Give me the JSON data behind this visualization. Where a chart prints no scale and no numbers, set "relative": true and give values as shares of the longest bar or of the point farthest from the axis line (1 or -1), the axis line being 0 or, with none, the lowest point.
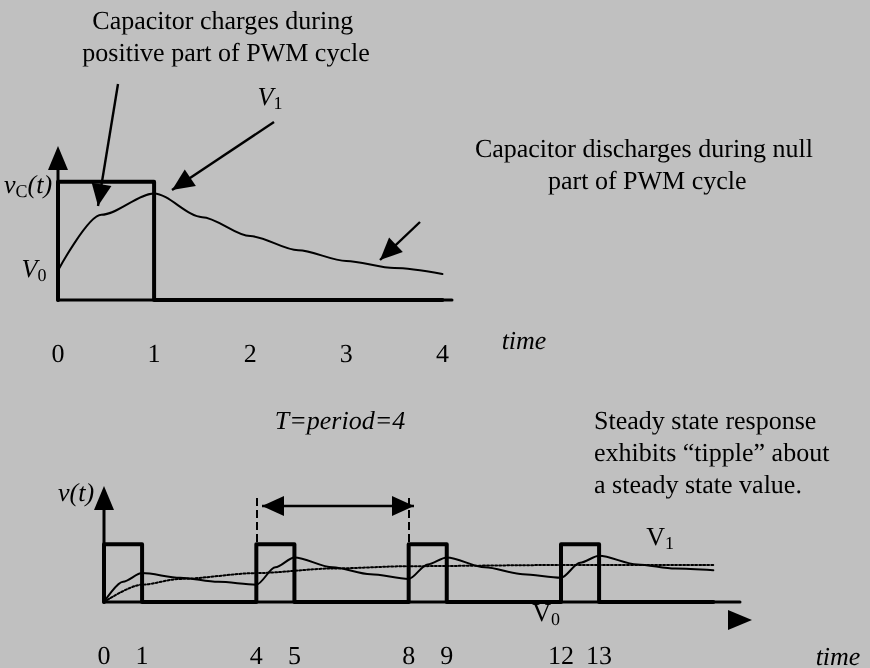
{
  "chart_data": [
    {
      "type": "line",
      "relative": true,
      "marker": "none",
      "xlim": [
        0,
        4.1
      ],
      "xticks": [
        0,
        1,
        2,
        3,
        4
      ],
      "xlabel": "time",
      "ylabel": "v$_{C}$(t)",
      "annotations": [
        "Capacitor charges during positive part of PWM cycle",
        "V$_{1}$",
        "Capacitor discharges during null part of PWM cycle",
        "V$_{0}$"
      ],
      "series": [
        {
          "type": "step",
          "color": "#000000",
          "x": [
            0,
            0,
            1,
            4
          ],
          "values": [
            0,
            1,
            0,
            0
          ]
        },
        {
          "type": "line",
          "color": "#000000",
          "x": [
            0,
            0.45,
            1,
            1.5,
            2,
            2.5,
            3,
            3.5,
            4
          ],
          "values": [
            0.25,
            0.72,
            0.9,
            0.7,
            0.54,
            0.42,
            0.33,
            0.27,
            0.22
          ]
        }
      ]
    },
    {
      "type": "line",
      "relative": true,
      "marker": "none",
      "xlim": [
        0,
        16.7
      ],
      "xticks": [
        0,
        1,
        4,
        5,
        8,
        9,
        12,
        13
      ],
      "xlabel": "time",
      "ylabel": "v(t)",
      "annotations": [
        "T=period=4",
        "Steady state response exhibits “tipple” about a steady state value.",
        "V$_{1}$",
        "V$_{0}$"
      ],
      "ref_lines": [
        {
          "axis": "x",
          "value": 4,
          "line_style": "dashed",
          "color": "#000000"
        },
        {
          "axis": "x",
          "value": 8,
          "line_style": "dashed",
          "color": "#000000"
        }
      ],
      "series": [
        {
          "type": "step",
          "color": "#000000",
          "x": [
            0,
            0,
            1,
            4,
            4,
            5,
            8,
            8,
            9,
            12,
            12,
            13,
            16
          ],
          "values": [
            0,
            1,
            0,
            0,
            1,
            0,
            0,
            1,
            0,
            0,
            1,
            0,
            0
          ]
        },
        {
          "type": "line",
          "color": "#000000",
          "x": [
            0,
            0.5,
            1,
            2,
            3,
            4,
            4.5,
            5,
            6,
            7,
            8,
            8.5,
            9,
            10,
            11,
            12,
            12.5,
            13,
            14,
            15,
            16
          ],
          "values": [
            0,
            0.35,
            0.5,
            0.42,
            0.35,
            0.3,
            0.6,
            0.77,
            0.6,
            0.48,
            0.4,
            0.65,
            0.77,
            0.6,
            0.48,
            0.42,
            0.68,
            0.8,
            0.65,
            0.58,
            0.55
          ]
        },
        {
          "type": "line",
          "color": "#000000",
          "line_style": "dotted",
          "x": [
            0,
            1,
            2,
            4,
            6,
            8,
            12,
            16
          ],
          "values": [
            0,
            0.3,
            0.4,
            0.5,
            0.58,
            0.62,
            0.64,
            0.64
          ]
        }
      ]
    }
  ]
}
